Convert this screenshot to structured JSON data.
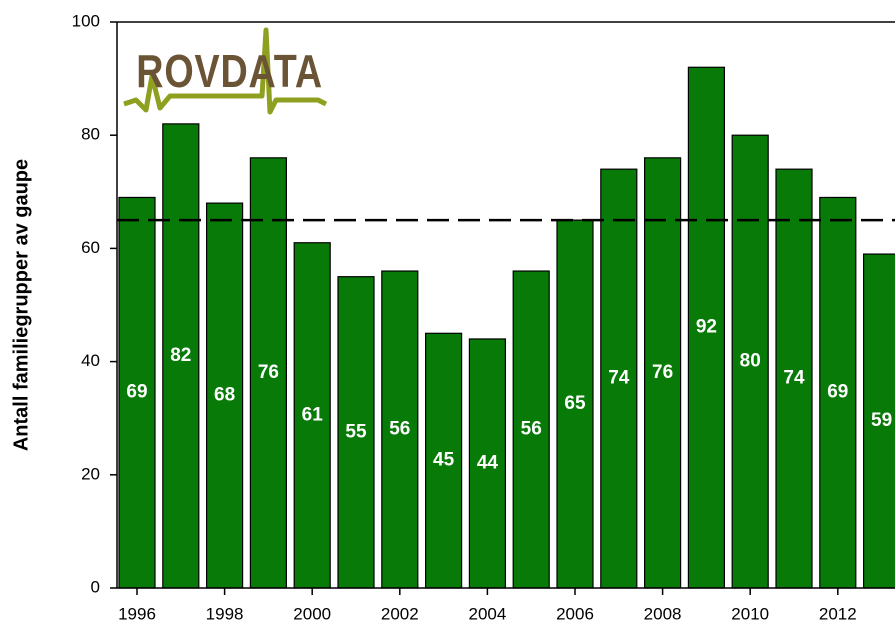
{
  "chart_data": {
    "type": "bar",
    "ylabel": "Antall familiegrupper av gaupe",
    "logo": "ROVDATA",
    "categories": [
      "1996",
      null,
      "1998",
      null,
      "2000",
      null,
      "2002",
      null,
      "2004",
      null,
      "2006",
      null,
      "2008",
      null,
      "2010",
      null,
      "2012",
      null
    ],
    "values": [
      69,
      82,
      68,
      76,
      61,
      55,
      56,
      45,
      44,
      56,
      65,
      74,
      76,
      92,
      80,
      74,
      69,
      59
    ],
    "color": "#087a08",
    "reference_value": 65,
    "ylim": [
      0,
      100
    ],
    "yticks": [
      0,
      20,
      40,
      60,
      80,
      100
    ]
  }
}
